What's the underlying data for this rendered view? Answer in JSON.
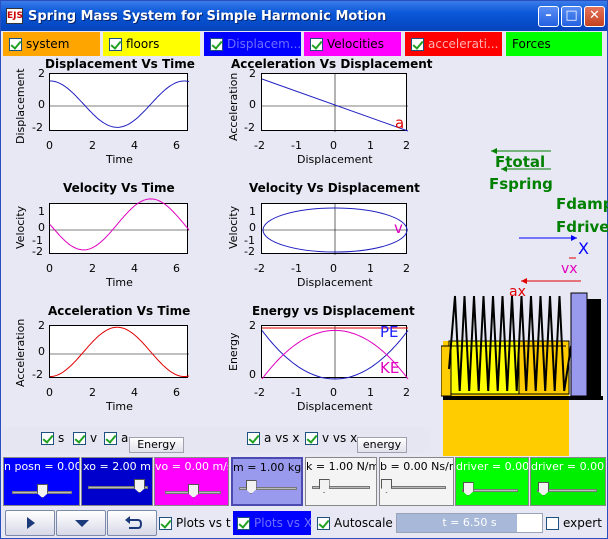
{
  "window": {
    "title": "Spring Mass System for Simple Harmonic Motion",
    "icon_text": "EJS"
  },
  "colors": {
    "system": "#ffa500",
    "floors": "#ffff00",
    "displacement": "#0000ff",
    "velocities": "#ff00ff",
    "acceleration": "#ff0000",
    "forces": "#00ff00"
  },
  "toolbar": {
    "system": "system",
    "floors": "floors",
    "displacement": "Displacem...",
    "velocities": "Velocities",
    "acceleration": "accelerati...",
    "forces": "Forces"
  },
  "plots": {
    "p1": {
      "title": "Displacement Vs Time",
      "xlabel": "Time",
      "ylabel": "Displacement",
      "xticks": [
        "0",
        "2",
        "4",
        "6"
      ],
      "yticks": [
        "2",
        "0",
        "-2"
      ]
    },
    "p2": {
      "title": "Acceleration Vs Displacement",
      "xlabel": "Displacement",
      "ylabel": "Acceleration",
      "xticks": [
        "-2",
        "-1",
        "0",
        "1",
        "2"
      ],
      "yticks": [
        "2",
        "0",
        "-2"
      ],
      "marker": "a"
    },
    "p3": {
      "title": "Velocity Vs Time",
      "xlabel": "Time",
      "ylabel": "Velocity",
      "xticks": [
        "0",
        "2",
        "4",
        "6"
      ],
      "yticks": [
        "1",
        "0",
        "-1",
        "-2"
      ]
    },
    "p4": {
      "title": "Velocity Vs Displacement",
      "xlabel": "Displacement",
      "ylabel": "Velocity",
      "xticks": [
        "-2",
        "-1",
        "0",
        "1",
        "2"
      ],
      "yticks": [
        "1",
        "0",
        "-1",
        "-2"
      ],
      "marker": "v"
    },
    "p5": {
      "title": "Acceleration Vs Time",
      "xlabel": "Time",
      "ylabel": "Acceleration",
      "xticks": [
        "0",
        "2",
        "4",
        "6"
      ],
      "yticks": [
        "2",
        "0",
        "-2"
      ]
    },
    "p6": {
      "title": "Energy vs Displacement",
      "xlabel": "Displacement",
      "ylabel": "Energy",
      "xticks": [
        "-2",
        "-1",
        "0",
        "1",
        "2"
      ],
      "yticks": [
        "2",
        "0"
      ],
      "pe": "PE",
      "ke": "KE"
    }
  },
  "scene": {
    "ftotal": "Ftotal",
    "fspring": "Fspring",
    "fdamp": "Fdamp",
    "fdrive": "Fdrive",
    "x": "X",
    "vx": "vx",
    "ax": "ax"
  },
  "left_checks": {
    "s": "s",
    "v": "v",
    "a": "a",
    "energy": "Energy"
  },
  "right_checks": {
    "avsx": "a vs x",
    "vvsx": "v vs x",
    "energy": "energy"
  },
  "controls": {
    "posn": "n posn = 0.00",
    "xo": "xo = 2.00 m",
    "vo": "vo = 0.00 m/s",
    "m": "m = 1.00 kg",
    "k": "k = 1.00 N/m",
    "b": "b = 0.00 Ns/m",
    "driver1": "driver = 0.00",
    "driver2": "driver = 0.00 H"
  },
  "slider_levels": {
    "posn": 0.5,
    "xo": 0.85,
    "vo": 0.5,
    "m": 0.2,
    "k": 0.2,
    "b": 0.0,
    "driver1": 0.1,
    "driver2": 0.1
  },
  "bottom": {
    "plots_vs_t": "Plots vs t",
    "plots_vs_x": "Plots vs X",
    "autoscale": "Autoscale",
    "time": "t = 6.50 s",
    "expert": "expert"
  }
}
